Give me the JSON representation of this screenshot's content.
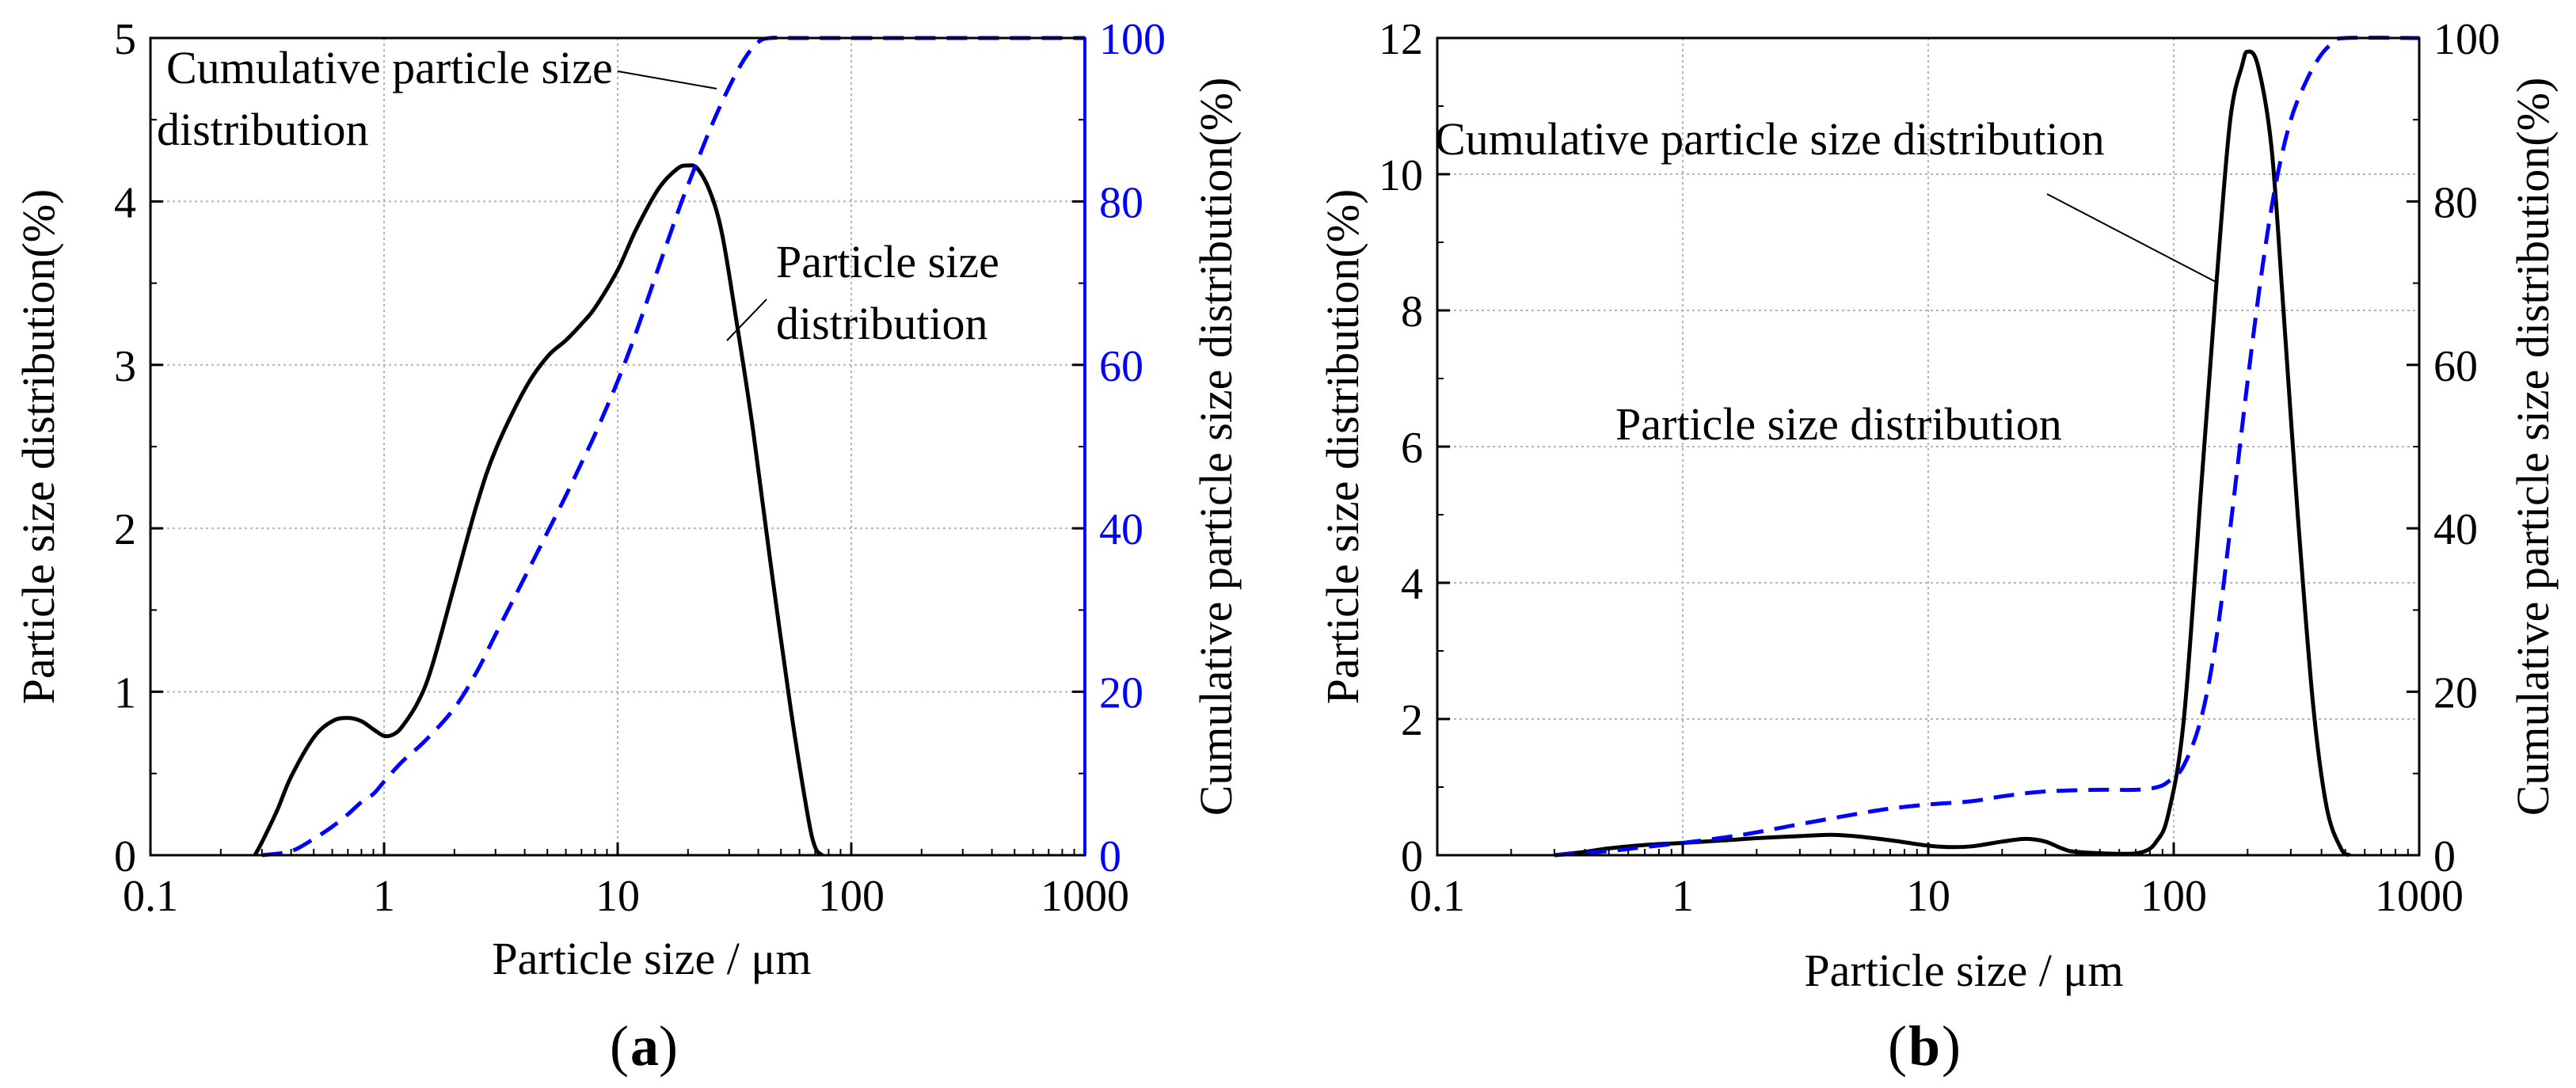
{
  "colors": {
    "psd": "#000000",
    "cum": "#0000ff",
    "grid": "#b4b4b4",
    "axis": "#000000"
  },
  "chart_data": [
    {
      "type": "line",
      "panel_label": "a",
      "xlabel": "Particle size / μm",
      "ylabel_left": "Particle size distribution(%)",
      "ylabel_right": "Cumulative particle size distribution(%)",
      "xscale": "log",
      "xlim": [
        0.1,
        1000
      ],
      "ylim_left": [
        0,
        5
      ],
      "ylim_right": [
        0,
        100
      ],
      "x_ticks": [
        0.1,
        1,
        10,
        100,
        1000
      ],
      "x_tick_labels": [
        "0.1",
        "1",
        "10",
        "100",
        "1000"
      ],
      "y_left_ticks": [
        0,
        1,
        2,
        3,
        4,
        5
      ],
      "y_left_tick_labels": [
        "0",
        "1",
        "2",
        "3",
        "4",
        "5"
      ],
      "y_right_ticks": [
        0,
        20,
        40,
        60,
        80,
        100
      ],
      "y_right_tick_labels": [
        "0",
        "20",
        "40",
        "60",
        "80",
        "100"
      ],
      "grid": true,
      "series": [
        {
          "name": "Particle size distribution",
          "axis": "left",
          "style": "solid",
          "x": [
            0.28,
            0.3,
            0.35,
            0.4,
            0.5,
            0.6,
            0.7,
            0.8,
            0.9,
            1.0,
            1.1,
            1.2,
            1.4,
            1.6,
            2.0,
            2.5,
            3.0,
            4.0,
            5.0,
            6.0,
            7.0,
            8.0,
            10,
            12,
            15,
            18,
            20,
            22,
            25,
            28,
            32,
            38,
            45,
            55,
            65,
            70,
            75
          ],
          "y": [
            0,
            0.08,
            0.28,
            0.48,
            0.72,
            0.82,
            0.84,
            0.82,
            0.77,
            0.73,
            0.74,
            0.79,
            0.94,
            1.15,
            1.65,
            2.15,
            2.48,
            2.85,
            3.05,
            3.15,
            3.25,
            3.35,
            3.58,
            3.83,
            4.08,
            4.2,
            4.22,
            4.2,
            4.05,
            3.8,
            3.3,
            2.6,
            1.8,
            0.9,
            0.25,
            0.05,
            0
          ]
        },
        {
          "name": "Cumulative particle size distribution",
          "axis": "right",
          "style": "dashed",
          "x": [
            0.3,
            0.4,
            0.5,
            0.6,
            0.7,
            0.8,
            0.9,
            1.0,
            1.2,
            1.5,
            2.0,
            2.5,
            3.0,
            4.0,
            5.0,
            6.0,
            7.0,
            8.0,
            10,
            12,
            15,
            18,
            20,
            25,
            30,
            35,
            40,
            45,
            60,
            100,
            1000
          ],
          "y": [
            0,
            0.5,
            2,
            3.5,
            5,
            6.5,
            7.5,
            9,
            11.5,
            14,
            18,
            22.5,
            27,
            34,
            39.5,
            44,
            48,
            51.5,
            58,
            64,
            72,
            78.5,
            82,
            89,
            94,
            97.5,
            99.5,
            100,
            100,
            100,
            100
          ]
        }
      ],
      "annotations": [
        {
          "lines": [
            "Cumulative particle size",
            "distribution"
          ]
        },
        {
          "lines": [
            "Particle size",
            "distribution"
          ]
        }
      ]
    },
    {
      "type": "line",
      "panel_label": "b",
      "xlabel": "Particle size  / μm",
      "ylabel_left": "Particle size distribution(%)",
      "ylabel_right": "Cumulative particle size distribution(%)",
      "xscale": "log",
      "xlim": [
        0.1,
        1000
      ],
      "ylim_left": [
        0,
        12
      ],
      "ylim_right": [
        0,
        100
      ],
      "x_ticks": [
        0.1,
        1,
        10,
        100,
        1000
      ],
      "x_tick_labels": [
        "0.1",
        "1",
        "10",
        "100",
        "1000"
      ],
      "y_left_ticks": [
        0,
        2,
        4,
        6,
        8,
        10,
        12
      ],
      "y_left_tick_labels": [
        "0",
        "2",
        "4",
        "6",
        "8",
        "10",
        "12"
      ],
      "y_right_ticks": [
        0,
        20,
        40,
        60,
        80,
        100
      ],
      "y_right_tick_labels": [
        "0",
        "20",
        "40",
        "60",
        "80",
        "100"
      ],
      "grid": true,
      "series": [
        {
          "name": "Particle size distribution",
          "axis": "left",
          "style": "solid",
          "x": [
            0.3,
            0.4,
            0.5,
            0.7,
            1.0,
            1.5,
            2.0,
            3.0,
            4.0,
            5.0,
            7.0,
            10,
            12,
            15,
            20,
            25,
            30,
            35,
            40,
            60,
            75,
            85,
            95,
            110,
            130,
            150,
            170,
            190,
            200,
            220,
            250,
            280,
            320,
            370,
            420,
            480,
            520
          ],
          "y": [
            0,
            0.05,
            0.1,
            0.15,
            0.18,
            0.22,
            0.25,
            0.28,
            0.3,
            0.28,
            0.22,
            0.14,
            0.12,
            0.13,
            0.2,
            0.24,
            0.2,
            0.1,
            0.05,
            0.02,
            0.05,
            0.2,
            0.6,
            2.0,
            5.5,
            8.5,
            10.8,
            11.6,
            11.8,
            11.6,
            10.4,
            8.0,
            5.0,
            2.2,
            0.7,
            0.1,
            0
          ]
        },
        {
          "name": "Cumulative particle size distribution",
          "axis": "right",
          "style": "dashed",
          "x": [
            0.3,
            0.5,
            0.7,
            1.0,
            1.5,
            2.0,
            3.0,
            5.0,
            7.0,
            10,
            15,
            20,
            30,
            50,
            70,
            85,
            95,
            110,
            130,
            150,
            170,
            200,
            230,
            260,
            300,
            350,
            400,
            450,
            500,
            1000
          ],
          "y": [
            0,
            0.5,
            1,
            1.5,
            2.2,
            2.8,
            3.8,
            5.0,
            5.7,
            6.2,
            6.6,
            7.2,
            7.8,
            8.0,
            8.0,
            8.3,
            9.0,
            11.0,
            17.0,
            27.0,
            40.0,
            58.0,
            72.0,
            82.0,
            90.0,
            95.0,
            98.0,
            99.5,
            100,
            100
          ]
        }
      ],
      "annotations": [
        {
          "lines": [
            "Cumulative particle size distribution"
          ]
        },
        {
          "lines": [
            "Particle size distribution"
          ]
        }
      ]
    }
  ]
}
